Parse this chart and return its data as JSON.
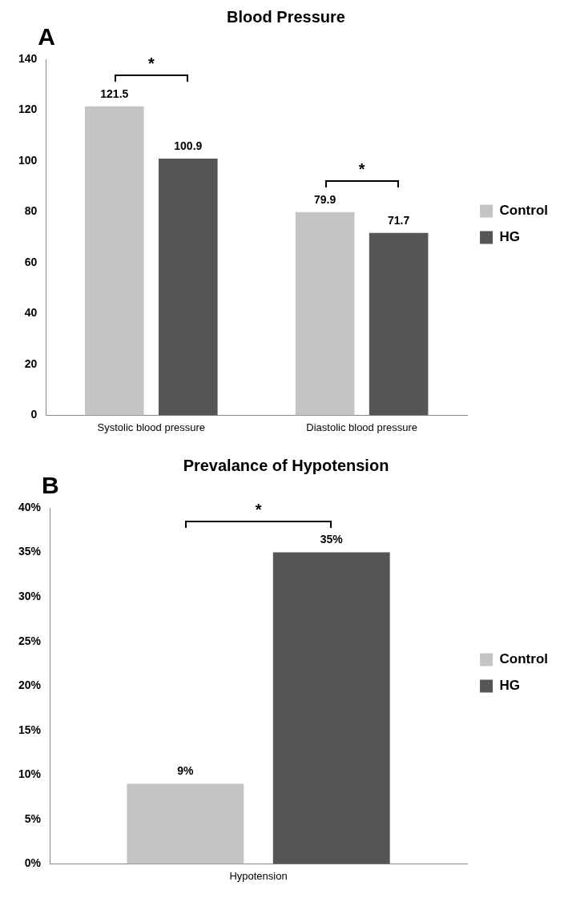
{
  "chart_data": [
    {
      "type": "bar",
      "title": "Blood Pressure",
      "categories": [
        "Systolic blood pressure",
        "Diastolic blood pressure"
      ],
      "series": [
        {
          "name": "Control",
          "color": "#c4c4c4",
          "values": [
            121.5,
            79.9
          ]
        },
        {
          "name": "HG",
          "color": "#555555",
          "values": [
            100.9,
            71.7
          ]
        }
      ],
      "ylim": [
        0,
        140
      ],
      "yticks": [
        0,
        20,
        40,
        60,
        80,
        100,
        120,
        140
      ],
      "grid": false,
      "legend": "right",
      "data_labels": true,
      "annotations": [
        "A",
        "*",
        "*"
      ]
    },
    {
      "type": "bar",
      "title": "Prevalance of Hypotension",
      "categories": [
        "Hypotension"
      ],
      "series": [
        {
          "name": "Control",
          "color": "#c4c4c4",
          "values": [
            9
          ],
          "value_labels": [
            "9%"
          ]
        },
        {
          "name": "HG",
          "color": "#555555",
          "values": [
            35
          ],
          "value_labels": [
            "35%"
          ]
        }
      ],
      "ylim": [
        0,
        40
      ],
      "yticks": [
        {
          "value": 0,
          "label": "0%"
        },
        {
          "value": 5,
          "label": "5%"
        },
        {
          "value": 10,
          "label": "10%"
        },
        {
          "value": 15,
          "label": "15%"
        },
        {
          "value": 20,
          "label": "20%"
        },
        {
          "value": 25,
          "label": "25%"
        },
        {
          "value": 30,
          "label": "30%"
        },
        {
          "value": 35,
          "label": "35%"
        },
        {
          "value": 40,
          "label": "40%"
        }
      ],
      "grid": false,
      "legend": "right",
      "annotations": [
        "B",
        "*"
      ]
    }
  ]
}
